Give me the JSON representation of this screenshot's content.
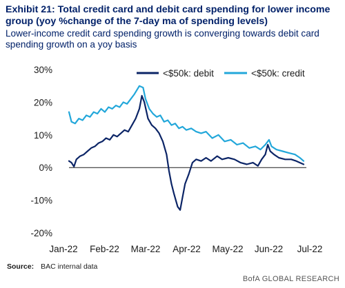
{
  "header": {
    "title": "Exhibit 21: Total credit card and debit card spending for lower income group (yoy %change of the 7-day ma of spending levels)",
    "subtitle": "Lower-income credit card spending growth is converging towards debit card spending growth on a yoy basis"
  },
  "source": {
    "label": "Source:",
    "text": "BAC internal data"
  },
  "footer": {
    "brand": "BofA GLOBAL RESEARCH"
  },
  "colors": {
    "debit": "#0b2466",
    "credit": "#22a7da",
    "axis": "#1a1a1a"
  },
  "chart_data": {
    "type": "line",
    "title": "",
    "xlabel": "",
    "ylabel": "",
    "x_tick_labels": [
      "Jan-22",
      "Feb-22",
      "Mar-22",
      "Apr-22",
      "May-22",
      "Jun-22",
      "Jul-22"
    ],
    "y_tick_labels": [
      "30%",
      "20%",
      "10%",
      "0%",
      "-10%",
      "-20%"
    ],
    "y_ticks": [
      30,
      20,
      10,
      0,
      -10,
      -20
    ],
    "ylim": [
      -20,
      30
    ],
    "xlim": [
      "2022-01-01",
      "2022-07-10"
    ],
    "grid": false,
    "legend": {
      "placement": "top"
    },
    "series": [
      {
        "name": "<$50k: debit",
        "color": "#0b2466",
        "points": [
          [
            "2022-01-01",
            2
          ],
          [
            "2022-01-03",
            1.5
          ],
          [
            "2022-01-05",
            0.3
          ],
          [
            "2022-01-07",
            2.5
          ],
          [
            "2022-01-10",
            3.5
          ],
          [
            "2022-01-13",
            4
          ],
          [
            "2022-01-16",
            5
          ],
          [
            "2022-01-19",
            6
          ],
          [
            "2022-01-22",
            6.5
          ],
          [
            "2022-01-25",
            7.5
          ],
          [
            "2022-01-28",
            8
          ],
          [
            "2022-01-31",
            9
          ],
          [
            "2022-02-03",
            8.5
          ],
          [
            "2022-02-06",
            10
          ],
          [
            "2022-02-09",
            9.5
          ],
          [
            "2022-02-12",
            10.5
          ],
          [
            "2022-02-15",
            11.5
          ],
          [
            "2022-02-18",
            11
          ],
          [
            "2022-02-21",
            13
          ],
          [
            "2022-02-24",
            15
          ],
          [
            "2022-02-27",
            18
          ],
          [
            "2022-03-01",
            22
          ],
          [
            "2022-03-03",
            20
          ],
          [
            "2022-03-06",
            15
          ],
          [
            "2022-03-09",
            13
          ],
          [
            "2022-03-12",
            12
          ],
          [
            "2022-03-15",
            10.5
          ],
          [
            "2022-03-18",
            8
          ],
          [
            "2022-03-21",
            4
          ],
          [
            "2022-03-23",
            -1
          ],
          [
            "2022-03-25",
            -5
          ],
          [
            "2022-03-27",
            -8
          ],
          [
            "2022-03-30",
            -12
          ],
          [
            "2022-04-01",
            -13
          ],
          [
            "2022-04-03",
            -9
          ],
          [
            "2022-04-05",
            -5
          ],
          [
            "2022-04-08",
            -2
          ],
          [
            "2022-04-11",
            1.5
          ],
          [
            "2022-04-14",
            2.5
          ],
          [
            "2022-04-18",
            2
          ],
          [
            "2022-04-22",
            3
          ],
          [
            "2022-04-26",
            2
          ],
          [
            "2022-05-01",
            3.5
          ],
          [
            "2022-05-05",
            2.5
          ],
          [
            "2022-05-10",
            3
          ],
          [
            "2022-05-15",
            2.5
          ],
          [
            "2022-05-20",
            1.5
          ],
          [
            "2022-05-25",
            1
          ],
          [
            "2022-05-30",
            1.5
          ],
          [
            "2022-06-03",
            0.5
          ],
          [
            "2022-06-06",
            2.5
          ],
          [
            "2022-06-09",
            4
          ],
          [
            "2022-06-11",
            7
          ],
          [
            "2022-06-13",
            5
          ],
          [
            "2022-06-16",
            4
          ],
          [
            "2022-06-20",
            3
          ],
          [
            "2022-06-25",
            2.5
          ],
          [
            "2022-06-30",
            2.5
          ],
          [
            "2022-07-04",
            2
          ],
          [
            "2022-07-07",
            1.5
          ],
          [
            "2022-07-10",
            1
          ]
        ]
      },
      {
        "name": "<$50k: credit",
        "color": "#22a7da",
        "points": [
          [
            "2022-01-01",
            17
          ],
          [
            "2022-01-03",
            14
          ],
          [
            "2022-01-06",
            13.5
          ],
          [
            "2022-01-09",
            15
          ],
          [
            "2022-01-12",
            14.5
          ],
          [
            "2022-01-15",
            16
          ],
          [
            "2022-01-18",
            15.5
          ],
          [
            "2022-01-21",
            17
          ],
          [
            "2022-01-24",
            16.5
          ],
          [
            "2022-01-27",
            18
          ],
          [
            "2022-01-30",
            17
          ],
          [
            "2022-02-02",
            18.5
          ],
          [
            "2022-02-05",
            18
          ],
          [
            "2022-02-08",
            19
          ],
          [
            "2022-02-11",
            18.5
          ],
          [
            "2022-02-14",
            20
          ],
          [
            "2022-02-17",
            19.5
          ],
          [
            "2022-02-20",
            21
          ],
          [
            "2022-02-23",
            22.5
          ],
          [
            "2022-02-27",
            25
          ],
          [
            "2022-03-02",
            24.5
          ],
          [
            "2022-03-04",
            21
          ],
          [
            "2022-03-07",
            18
          ],
          [
            "2022-03-10",
            16.5
          ],
          [
            "2022-03-13",
            15.5
          ],
          [
            "2022-03-16",
            16
          ],
          [
            "2022-03-19",
            14
          ],
          [
            "2022-03-22",
            14.5
          ],
          [
            "2022-03-25",
            13
          ],
          [
            "2022-03-28",
            13.5
          ],
          [
            "2022-03-31",
            12
          ],
          [
            "2022-04-03",
            12.5
          ],
          [
            "2022-04-06",
            11.5
          ],
          [
            "2022-04-10",
            12
          ],
          [
            "2022-04-14",
            11
          ],
          [
            "2022-04-18",
            10.5
          ],
          [
            "2022-04-22",
            11
          ],
          [
            "2022-04-27",
            9
          ],
          [
            "2022-05-02",
            10
          ],
          [
            "2022-05-07",
            8
          ],
          [
            "2022-05-12",
            8.5
          ],
          [
            "2022-05-17",
            7
          ],
          [
            "2022-05-22",
            7.5
          ],
          [
            "2022-05-27",
            6
          ],
          [
            "2022-06-01",
            6.5
          ],
          [
            "2022-06-05",
            5.5
          ],
          [
            "2022-06-09",
            7
          ],
          [
            "2022-06-12",
            8.5
          ],
          [
            "2022-06-14",
            6.5
          ],
          [
            "2022-06-18",
            5.5
          ],
          [
            "2022-06-23",
            5
          ],
          [
            "2022-06-28",
            4.5
          ],
          [
            "2022-07-03",
            4
          ],
          [
            "2022-07-07",
            3
          ],
          [
            "2022-07-10",
            2
          ]
        ]
      }
    ]
  }
}
